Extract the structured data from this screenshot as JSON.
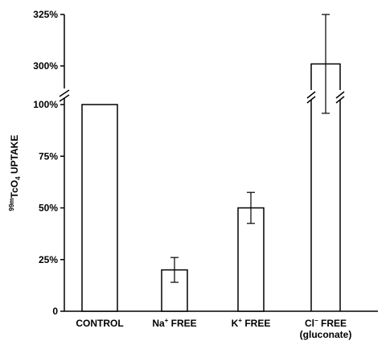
{
  "chart_data": {
    "type": "bar",
    "ylabel": "99mTcO4 UPTAKE",
    "ylabel_parts": {
      "pre_sup": "99m",
      "main": "TcO",
      "sub": "4",
      "post": " UPTAKE"
    },
    "y_ticks_lower": [
      "0",
      "25%",
      "50%",
      "75%",
      "100%"
    ],
    "y_ticks_upper": [
      "300%",
      "325%"
    ],
    "axis_break": {
      "lower_range": [
        0,
        100
      ],
      "upper_range": [
        290,
        325
      ]
    },
    "categories": [
      {
        "label": "CONTROL",
        "line2": ""
      },
      {
        "label": "Na+ FREE",
        "ion": "Na",
        "sup": "+",
        "rest": " FREE",
        "line2": ""
      },
      {
        "label": "K+ FREE",
        "ion": "K",
        "sup": "+",
        "rest": " FREE",
        "line2": ""
      },
      {
        "label": "Cl− FREE",
        "ion": "Cl",
        "sup": "−",
        "rest": " FREE",
        "line2": "(gluconate)"
      }
    ],
    "values": [
      100,
      20,
      50,
      301
    ],
    "errors": [
      null,
      6,
      7.5,
      24
    ],
    "grid": false,
    "legend": "none"
  }
}
